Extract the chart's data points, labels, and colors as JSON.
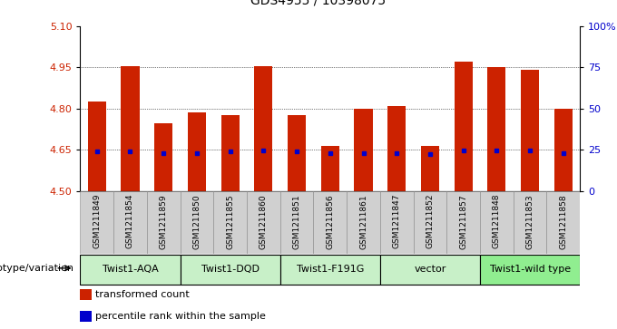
{
  "title": "GDS4955 / 10398075",
  "samples": [
    "GSM1211849",
    "GSM1211854",
    "GSM1211859",
    "GSM1211850",
    "GSM1211855",
    "GSM1211860",
    "GSM1211851",
    "GSM1211856",
    "GSM1211861",
    "GSM1211847",
    "GSM1211852",
    "GSM1211857",
    "GSM1211848",
    "GSM1211853",
    "GSM1211858"
  ],
  "bar_values": [
    4.825,
    4.955,
    4.745,
    4.785,
    4.775,
    4.955,
    4.775,
    4.665,
    4.8,
    4.81,
    4.665,
    4.97,
    4.95,
    4.94,
    4.8
  ],
  "dot_values": [
    4.645,
    4.645,
    4.638,
    4.638,
    4.643,
    4.648,
    4.643,
    4.638,
    4.638,
    4.638,
    4.635,
    4.648,
    4.648,
    4.648,
    4.638
  ],
  "bar_bottom": 4.5,
  "ymin": 4.5,
  "ymax": 5.1,
  "yticks": [
    4.5,
    4.65,
    4.8,
    4.95,
    5.1
  ],
  "right_yticks": [
    0,
    25,
    50,
    75,
    100
  ],
  "bar_color": "#cc2200",
  "dot_color": "#0000cc",
  "bar_width": 0.55,
  "groups": [
    {
      "label": "Twist1-AQA",
      "start": 0,
      "end": 2,
      "color": "#c8f0c8"
    },
    {
      "label": "Twist1-DQD",
      "start": 3,
      "end": 5,
      "color": "#c8f0c8"
    },
    {
      "label": "Twist1-F191G",
      "start": 6,
      "end": 8,
      "color": "#c8f0c8"
    },
    {
      "label": "vector",
      "start": 9,
      "end": 11,
      "color": "#c8f0c8"
    },
    {
      "label": "Twist1-wild type",
      "start": 12,
      "end": 14,
      "color": "#90ee90"
    }
  ],
  "genotype_label": "genotype/variation",
  "legend_items": [
    {
      "label": "transformed count",
      "color": "#cc2200"
    },
    {
      "label": "percentile rank within the sample",
      "color": "#0000cc"
    }
  ],
  "bg_color": "#ffffff",
  "tick_label_color_left": "#cc2200",
  "tick_label_color_right": "#0000cc",
  "title_fontsize": 10,
  "tick_fontsize": 8,
  "sample_fontsize": 6.5
}
